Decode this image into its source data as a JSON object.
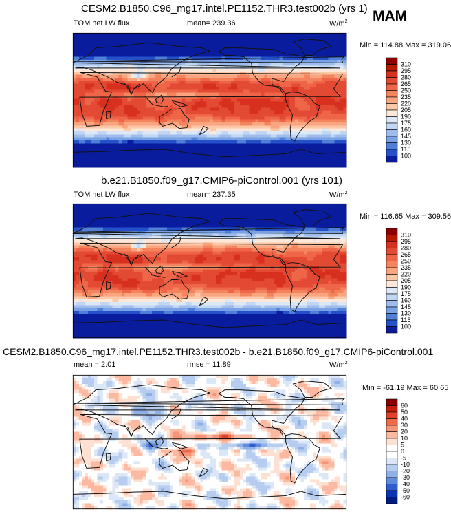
{
  "season": "MAM",
  "panels": [
    {
      "title": "CESM2.B1850.C96_mg17.intel.PE1152.THR3.test002b (yrs 1)",
      "left_label": "TOM net LW flux",
      "mid_label": "mean= 239.36",
      "units": "W/m",
      "units_sup": "2",
      "minmax": "Min = 114.88 Max = 319.06",
      "levels": [
        "310",
        "295",
        "280",
        "265",
        "250",
        "235",
        "220",
        "205",
        "190",
        "175",
        "160",
        "145",
        "130",
        "115",
        "100"
      ]
    },
    {
      "title": "b.e21.B1850.f09_g17.CMIP6-piControl.001 (yrs 101)",
      "left_label": "TOM net LW flux",
      "mid_label": "mean= 237.35",
      "units": "W/m",
      "units_sup": "2",
      "minmax": "Min = 116.65 Max = 309.56",
      "levels": [
        "310",
        "295",
        "280",
        "265",
        "250",
        "235",
        "220",
        "205",
        "190",
        "175",
        "160",
        "145",
        "130",
        "115",
        "100"
      ]
    },
    {
      "title": "CESM2.B1850.C96_mg17.intel.PE1152.THR3.test002b - b.e21.B1850.f09_g17.CMIP6-piControl.001",
      "left_label": "mean =   2.01",
      "mid_label": "rmse =  11.89",
      "units": "W/m",
      "units_sup": "2",
      "minmax": "Min = -61.19 Max = 60.65",
      "levels": [
        "60",
        "50",
        "40",
        "30",
        "20",
        "10",
        "5",
        "0",
        "-5",
        "-10",
        "-20",
        "-30",
        "-40",
        "-50",
        "-60"
      ]
    }
  ],
  "colors": {
    "abs_scale": [
      "#8b0000",
      "#b81a00",
      "#d7301f",
      "#e34a33",
      "#ef6548",
      "#f4845e",
      "#f9a57f",
      "#fcc8a8",
      "#fde7d8",
      "#dde8f7",
      "#c1d6f2",
      "#9fbdec",
      "#7aa1e3",
      "#4f7fd6",
      "#2451c9",
      "#0a1c9e"
    ],
    "diff_scale": [
      "#8b0000",
      "#c81e0b",
      "#e0412a",
      "#ee6a4b",
      "#f59476",
      "#fab9a0",
      "#fde0d2",
      "#ffffff",
      "#ffffff",
      "#dbe6f6",
      "#b6cdef",
      "#8eb0e6",
      "#5f8bdc",
      "#2f5fcf",
      "#0a34b8",
      "#001a80"
    ]
  },
  "chart_data": [
    {
      "type": "heatmap",
      "title": "CESM2.B1850.C96_mg17.intel.PE1152.THR3.test002b (yrs 1)",
      "variable": "TOM net LW flux",
      "units": "W/m2",
      "mean": 239.36,
      "min": 114.88,
      "max": 319.06,
      "contour_levels": [
        100,
        115,
        130,
        145,
        160,
        175,
        190,
        205,
        220,
        235,
        250,
        265,
        280,
        295,
        310
      ]
    },
    {
      "type": "heatmap",
      "title": "b.e21.B1850.f09_g17.CMIP6-piControl.001 (yrs 101)",
      "variable": "TOM net LW flux",
      "units": "W/m2",
      "mean": 237.35,
      "min": 116.65,
      "max": 309.56,
      "contour_levels": [
        100,
        115,
        130,
        145,
        160,
        175,
        190,
        205,
        220,
        235,
        250,
        265,
        280,
        295,
        310
      ]
    },
    {
      "type": "heatmap",
      "title": "CESM2.B1850.C96_mg17.intel.PE1152.THR3.test002b - b.e21.B1850.f09_g17.CMIP6-piControl.001",
      "units": "W/m2",
      "mean": 2.01,
      "rmse": 11.89,
      "min": -61.19,
      "max": 60.65,
      "contour_levels": [
        -60,
        -50,
        -40,
        -30,
        -20,
        -10,
        -5,
        0,
        5,
        10,
        20,
        30,
        40,
        50,
        60
      ]
    }
  ]
}
